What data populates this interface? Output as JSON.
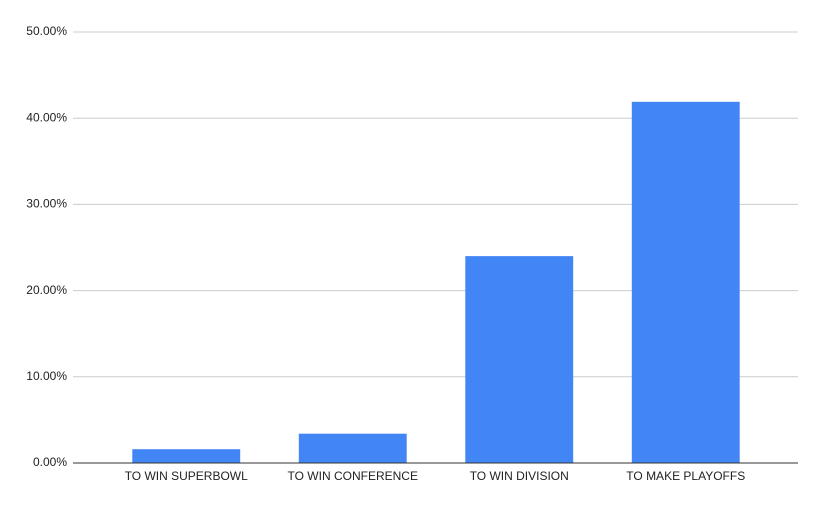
{
  "chart_data": {
    "type": "bar",
    "categories": [
      "TO WIN SUPERBOWL",
      "TO WIN CONFERENCE",
      "TO WIN DIVISION",
      "TO MAKE PLAYOFFS"
    ],
    "values": [
      1.6,
      3.4,
      24.0,
      41.9
    ],
    "color": "#4285f4",
    "ylim": [
      0,
      50
    ],
    "yticks": [
      {
        "value": 0,
        "label": "0.00%"
      },
      {
        "value": 10,
        "label": "10.00%"
      },
      {
        "value": 20,
        "label": "20.00%"
      },
      {
        "value": 30,
        "label": "30.00%"
      },
      {
        "value": 40,
        "label": "40.00%"
      },
      {
        "value": 50,
        "label": "50.00%"
      }
    ],
    "grid": true
  }
}
